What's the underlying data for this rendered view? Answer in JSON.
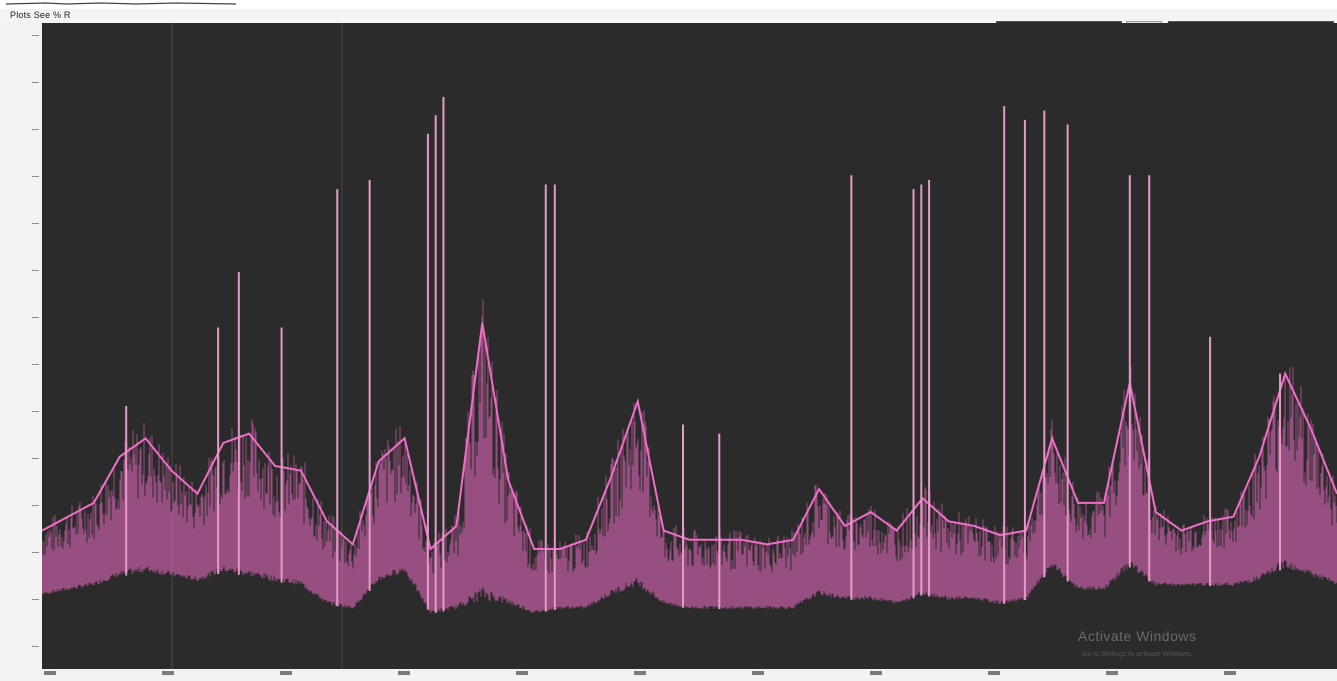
{
  "window": {
    "title_bar_text": "",
    "menu_text": "Plots  See % R"
  },
  "status": {
    "blocks": [
      {
        "accent": "#c92a5a"
      },
      {
        "accent": "#c92a5a"
      }
    ]
  },
  "watermark": {
    "title": "Activate Windows",
    "subtitle": "Go to Settings to activate Windows."
  },
  "colors": {
    "plot_background": "#2b2b2b",
    "trace_main": "#f06ec8",
    "trace_spike": "#e59ac8",
    "panel": "#f4f4f4"
  },
  "chart_data": {
    "type": "line",
    "title": "",
    "xlabel": "",
    "ylabel": "",
    "ylim": [
      0,
      14
    ],
    "grid": false,
    "legend": "none",
    "envelope": {
      "x": [
        0,
        2,
        4,
        6,
        8,
        10,
        12,
        14,
        16,
        18,
        20,
        22,
        24,
        26,
        28,
        30,
        32,
        34,
        36,
        38,
        40,
        42,
        44,
        46,
        48,
        50,
        52,
        54,
        56,
        58,
        60,
        62,
        64,
        66,
        68,
        70,
        72,
        74,
        76,
        78,
        80,
        82,
        84,
        86,
        88,
        90,
        92,
        94,
        96,
        98,
        100
      ],
      "y": [
        3,
        3.3,
        3.6,
        4.6,
        5,
        4.3,
        3.8,
        4.9,
        5.1,
        4.4,
        4.3,
        3.2,
        2.7,
        4.5,
        5,
        2.6,
        3.1,
        7.5,
        4.1,
        2.6,
        2.6,
        2.8,
        4.2,
        5.8,
        3.0,
        2.8,
        2.8,
        2.8,
        2.7,
        2.8,
        3.9,
        3.1,
        3.4,
        3.0,
        3.7,
        3.2,
        3.1,
        2.9,
        3.0,
        5.0,
        3.6,
        3.6,
        6.2,
        3.4,
        3.0,
        3.2,
        3.3,
        4.6,
        6.4,
        5.2,
        3.8
      ],
      "lower": [
        1.6,
        1.7,
        1.8,
        2.0,
        2.1,
        2.0,
        1.9,
        2.1,
        2.0,
        1.9,
        1.8,
        1.4,
        1.3,
        1.9,
        2.1,
        1.2,
        1.3,
        1.5,
        1.4,
        1.2,
        1.3,
        1.3,
        1.6,
        1.8,
        1.4,
        1.3,
        1.3,
        1.3,
        1.3,
        1.3,
        1.6,
        1.5,
        1.5,
        1.4,
        1.6,
        1.5,
        1.5,
        1.4,
        1.5,
        2.2,
        1.7,
        1.7,
        2.2,
        1.8,
        1.8,
        1.8,
        1.8,
        1.9,
        2.2,
        2.0,
        1.8
      ]
    },
    "spikes": [
      {
        "x": 6.5,
        "y": 5.7
      },
      {
        "x": 13.6,
        "y": 7.4
      },
      {
        "x": 15.2,
        "y": 8.6
      },
      {
        "x": 18.5,
        "y": 7.4
      },
      {
        "x": 22.8,
        "y": 10.4
      },
      {
        "x": 25.3,
        "y": 10.6
      },
      {
        "x": 29.8,
        "y": 11.6
      },
      {
        "x": 30.4,
        "y": 12.0
      },
      {
        "x": 31.0,
        "y": 12.4
      },
      {
        "x": 38.9,
        "y": 10.5
      },
      {
        "x": 39.6,
        "y": 10.5
      },
      {
        "x": 49.5,
        "y": 5.3
      },
      {
        "x": 52.3,
        "y": 5.1
      },
      {
        "x": 62.5,
        "y": 10.7
      },
      {
        "x": 67.3,
        "y": 10.4
      },
      {
        "x": 67.9,
        "y": 10.5
      },
      {
        "x": 68.5,
        "y": 10.6
      },
      {
        "x": 74.3,
        "y": 12.2
      },
      {
        "x": 75.9,
        "y": 11.9
      },
      {
        "x": 77.4,
        "y": 12.1
      },
      {
        "x": 79.2,
        "y": 11.8
      },
      {
        "x": 84.0,
        "y": 10.7
      },
      {
        "x": 85.5,
        "y": 10.7
      },
      {
        "x": 90.2,
        "y": 7.2
      },
      {
        "x": 95.6,
        "y": 6.4
      }
    ]
  }
}
